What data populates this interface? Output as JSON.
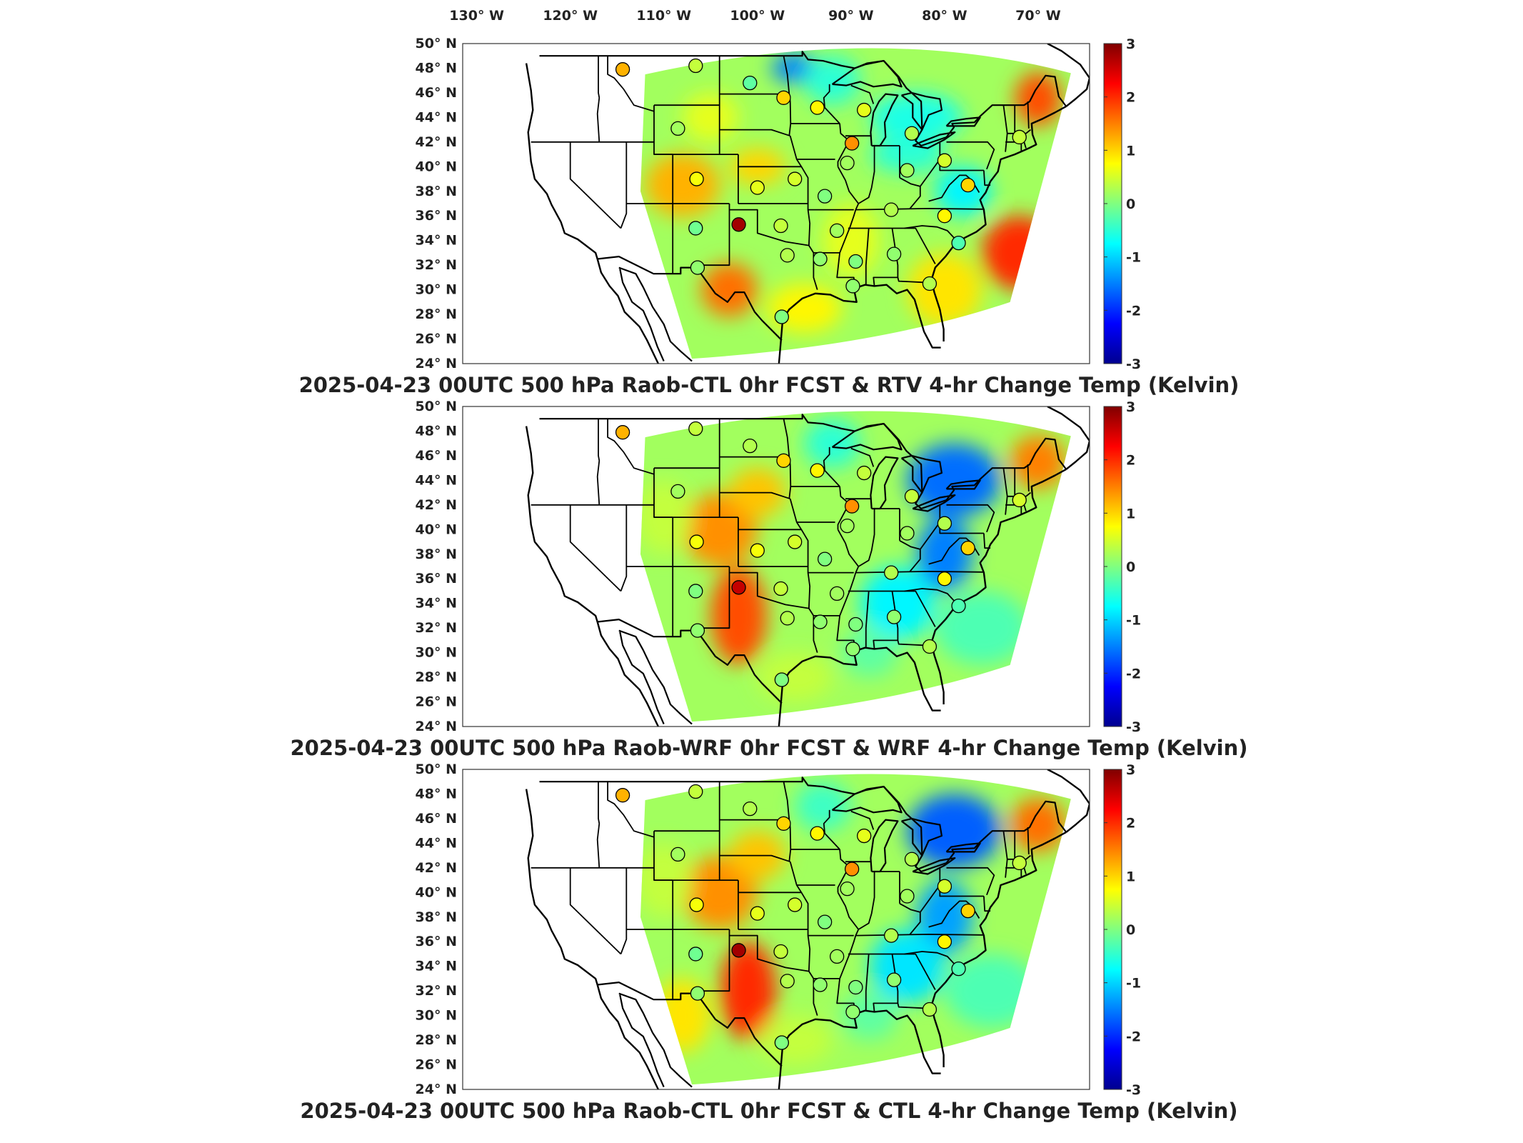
{
  "lon_ticks": [
    "130° W",
    "120° W",
    "110° W",
    "100° W",
    "90° W",
    "80° W",
    "70° W"
  ],
  "lat_ticks": [
    "50° N",
    "48° N",
    "46° N",
    "44° N",
    "42° N",
    "40° N",
    "38° N",
    "36° N",
    "34° N",
    "32° N",
    "30° N",
    "28° N",
    "26° N",
    "24° N"
  ],
  "colorbar": {
    "ticks": [
      "3",
      "2",
      "1",
      "0",
      "-1",
      "-2",
      "-3"
    ],
    "range": [
      -3,
      3
    ],
    "colormap": "jet",
    "colors": [
      "#00008f",
      "#0000ff",
      "#00ffff",
      "#80ff80",
      "#ffff00",
      "#ff0000",
      "#800000"
    ]
  },
  "panels": [
    {
      "title": "2025-04-23 00UTC 500 hPa Raob-CTL 0hr FCST & RTV 4-hr Change Temp (Kelvin)",
      "raob_markers": [
        {
          "lon": -114.4,
          "lat": 47.9,
          "value": 1.2
        },
        {
          "lon": -106.6,
          "lat": 48.2,
          "value": 0.4
        },
        {
          "lon": -100.8,
          "lat": 46.8,
          "value": -0.2
        },
        {
          "lon": -97.2,
          "lat": 45.6,
          "value": 1.0
        },
        {
          "lon": -93.6,
          "lat": 44.8,
          "value": 0.8
        },
        {
          "lon": -88.6,
          "lat": 44.6,
          "value": 0.6
        },
        {
          "lon": -83.5,
          "lat": 42.7,
          "value": 0.3
        },
        {
          "lon": -89.9,
          "lat": 41.9,
          "value": 1.4
        },
        {
          "lon": -108.5,
          "lat": 43.1,
          "value": 0.2
        },
        {
          "lon": -106.5,
          "lat": 39.0,
          "value": 0.7
        },
        {
          "lon": -100.0,
          "lat": 38.3,
          "value": 0.6
        },
        {
          "lon": -96.0,
          "lat": 39.0,
          "value": 0.5
        },
        {
          "lon": -90.4,
          "lat": 40.3,
          "value": 0.2
        },
        {
          "lon": -84.0,
          "lat": 39.7,
          "value": 0.2
        },
        {
          "lon": -80.0,
          "lat": 40.5,
          "value": 0.5
        },
        {
          "lon": -72.0,
          "lat": 42.4,
          "value": 0.4
        },
        {
          "lon": -77.5,
          "lat": 38.5,
          "value": 1.0
        },
        {
          "lon": -92.8,
          "lat": 37.6,
          "value": 0.0
        },
        {
          "lon": -85.7,
          "lat": 36.5,
          "value": 0.3
        },
        {
          "lon": -80.0,
          "lat": 36.0,
          "value": 0.8
        },
        {
          "lon": -106.6,
          "lat": 35.0,
          "value": -0.1
        },
        {
          "lon": -102.0,
          "lat": 35.3,
          "value": 2.8
        },
        {
          "lon": -97.5,
          "lat": 35.2,
          "value": 0.4
        },
        {
          "lon": -91.5,
          "lat": 34.8,
          "value": 0.2
        },
        {
          "lon": -96.8,
          "lat": 32.8,
          "value": 0.3
        },
        {
          "lon": -93.3,
          "lat": 32.5,
          "value": 0.1
        },
        {
          "lon": -89.5,
          "lat": 32.3,
          "value": 0.0
        },
        {
          "lon": -85.4,
          "lat": 32.9,
          "value": 0.1
        },
        {
          "lon": -78.5,
          "lat": 33.8,
          "value": -0.3
        },
        {
          "lon": -106.4,
          "lat": 31.8,
          "value": 0.1
        },
        {
          "lon": -81.6,
          "lat": 30.5,
          "value": 0.3
        },
        {
          "lon": -89.8,
          "lat": 30.3,
          "value": 0.1
        },
        {
          "lon": -97.4,
          "lat": 27.8,
          "value": 0.0
        }
      ]
    },
    {
      "title": "2025-04-23 00UTC 500 hPa Raob-WRF 0hr FCST & WRF 4-hr Change Temp (Kelvin)",
      "raob_markers": [
        {
          "lon": -114.4,
          "lat": 47.9,
          "value": 1.2
        },
        {
          "lon": -106.6,
          "lat": 48.2,
          "value": 0.4
        },
        {
          "lon": -100.8,
          "lat": 46.8,
          "value": 0.3
        },
        {
          "lon": -97.2,
          "lat": 45.6,
          "value": 1.0
        },
        {
          "lon": -93.6,
          "lat": 44.8,
          "value": 0.8
        },
        {
          "lon": -88.6,
          "lat": 44.6,
          "value": 0.4
        },
        {
          "lon": -83.5,
          "lat": 42.7,
          "value": 0.4
        },
        {
          "lon": -89.9,
          "lat": 41.9,
          "value": 1.4
        },
        {
          "lon": -108.5,
          "lat": 43.1,
          "value": 0.2
        },
        {
          "lon": -106.5,
          "lat": 39.0,
          "value": 0.7
        },
        {
          "lon": -100.0,
          "lat": 38.3,
          "value": 0.7
        },
        {
          "lon": -96.0,
          "lat": 39.0,
          "value": 0.5
        },
        {
          "lon": -90.4,
          "lat": 40.3,
          "value": 0.2
        },
        {
          "lon": -84.0,
          "lat": 39.7,
          "value": 0.2
        },
        {
          "lon": -80.0,
          "lat": 40.5,
          "value": 0.3
        },
        {
          "lon": -72.0,
          "lat": 42.4,
          "value": 0.5
        },
        {
          "lon": -77.5,
          "lat": 38.5,
          "value": 1.0
        },
        {
          "lon": -92.8,
          "lat": 37.6,
          "value": 0.0
        },
        {
          "lon": -85.7,
          "lat": 36.5,
          "value": 0.3
        },
        {
          "lon": -80.0,
          "lat": 36.0,
          "value": 0.8
        },
        {
          "lon": -106.6,
          "lat": 35.0,
          "value": 0.0
        },
        {
          "lon": -102.0,
          "lat": 35.3,
          "value": 2.6
        },
        {
          "lon": -97.5,
          "lat": 35.2,
          "value": 0.4
        },
        {
          "lon": -91.5,
          "lat": 34.8,
          "value": 0.2
        },
        {
          "lon": -96.8,
          "lat": 32.8,
          "value": 0.3
        },
        {
          "lon": -93.3,
          "lat": 32.5,
          "value": 0.1
        },
        {
          "lon": -89.5,
          "lat": 32.3,
          "value": 0.0
        },
        {
          "lon": -85.4,
          "lat": 32.9,
          "value": 0.1
        },
        {
          "lon": -78.5,
          "lat": 33.8,
          "value": -0.3
        },
        {
          "lon": -106.4,
          "lat": 31.8,
          "value": 0.1
        },
        {
          "lon": -81.6,
          "lat": 30.5,
          "value": 0.3
        },
        {
          "lon": -89.8,
          "lat": 30.3,
          "value": 0.1
        },
        {
          "lon": -97.4,
          "lat": 27.8,
          "value": 0.0
        }
      ]
    },
    {
      "title": "2025-04-23 00UTC 500 hPa Raob-CTL 0hr FCST & CTL 4-hr Change Temp (Kelvin)",
      "raob_markers": [
        {
          "lon": -114.4,
          "lat": 47.9,
          "value": 1.2
        },
        {
          "lon": -106.6,
          "lat": 48.2,
          "value": 0.4
        },
        {
          "lon": -100.8,
          "lat": 46.8,
          "value": 0.3
        },
        {
          "lon": -97.2,
          "lat": 45.6,
          "value": 1.0
        },
        {
          "lon": -93.6,
          "lat": 44.8,
          "value": 0.8
        },
        {
          "lon": -88.6,
          "lat": 44.6,
          "value": 0.6
        },
        {
          "lon": -83.5,
          "lat": 42.7,
          "value": 0.3
        },
        {
          "lon": -89.9,
          "lat": 41.9,
          "value": 1.4
        },
        {
          "lon": -108.5,
          "lat": 43.1,
          "value": 0.2
        },
        {
          "lon": -106.5,
          "lat": 39.0,
          "value": 0.7
        },
        {
          "lon": -100.0,
          "lat": 38.3,
          "value": 0.6
        },
        {
          "lon": -96.0,
          "lat": 39.0,
          "value": 0.5
        },
        {
          "lon": -90.4,
          "lat": 40.3,
          "value": 0.2
        },
        {
          "lon": -84.0,
          "lat": 39.7,
          "value": 0.2
        },
        {
          "lon": -80.0,
          "lat": 40.5,
          "value": 0.5
        },
        {
          "lon": -72.0,
          "lat": 42.4,
          "value": 0.4
        },
        {
          "lon": -77.5,
          "lat": 38.5,
          "value": 1.0
        },
        {
          "lon": -92.8,
          "lat": 37.6,
          "value": 0.0
        },
        {
          "lon": -85.7,
          "lat": 36.5,
          "value": 0.3
        },
        {
          "lon": -80.0,
          "lat": 36.0,
          "value": 0.8
        },
        {
          "lon": -106.6,
          "lat": 35.0,
          "value": -0.1
        },
        {
          "lon": -102.0,
          "lat": 35.3,
          "value": 2.8
        },
        {
          "lon": -97.5,
          "lat": 35.2,
          "value": 0.4
        },
        {
          "lon": -91.5,
          "lat": 34.8,
          "value": 0.2
        },
        {
          "lon": -96.8,
          "lat": 32.8,
          "value": 0.3
        },
        {
          "lon": -93.3,
          "lat": 32.5,
          "value": 0.1
        },
        {
          "lon": -89.5,
          "lat": 32.3,
          "value": 0.0
        },
        {
          "lon": -85.4,
          "lat": 32.9,
          "value": 0.1
        },
        {
          "lon": -78.5,
          "lat": 33.8,
          "value": -0.3
        },
        {
          "lon": -106.4,
          "lat": 31.8,
          "value": 0.1
        },
        {
          "lon": -81.6,
          "lat": 30.5,
          "value": 0.3
        },
        {
          "lon": -89.8,
          "lat": 30.3,
          "value": 0.1
        },
        {
          "lon": -97.4,
          "lat": 27.8,
          "value": 0.0
        }
      ]
    }
  ]
}
